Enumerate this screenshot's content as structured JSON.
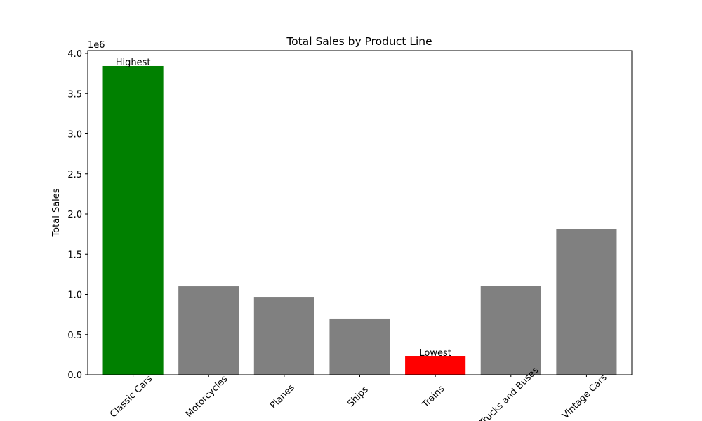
{
  "chart_data": {
    "type": "bar",
    "title": "Total Sales by Product Line",
    "y_label": "Total Sales",
    "y_offset_label": "1e6",
    "categories": [
      "Classic Cars",
      "Motorcycles",
      "Planes",
      "Ships",
      "Trains",
      "Trucks and Buses",
      "Vintage Cars"
    ],
    "values": [
      3843000,
      1100000,
      969000,
      699000,
      227000,
      1109000,
      1808000
    ],
    "colors": [
      "#008000",
      "#808080",
      "#808080",
      "#808080",
      "#ff0000",
      "#808080",
      "#808080"
    ],
    "annotations": {
      "highest": "Highest",
      "lowest": "Lowest"
    },
    "ylim": [
      0,
      4035000
    ],
    "yticks": [
      {
        "value": 0,
        "label": "0.0"
      },
      {
        "value": 500000,
        "label": "0.5"
      },
      {
        "value": 1000000,
        "label": "1.0"
      },
      {
        "value": 1500000,
        "label": "1.5"
      },
      {
        "value": 2000000,
        "label": "2.0"
      },
      {
        "value": 2500000,
        "label": "2.5"
      },
      {
        "value": 3000000,
        "label": "3.0"
      },
      {
        "value": 3500000,
        "label": "3.5"
      },
      {
        "value": 4000000,
        "label": "4.0"
      }
    ]
  }
}
